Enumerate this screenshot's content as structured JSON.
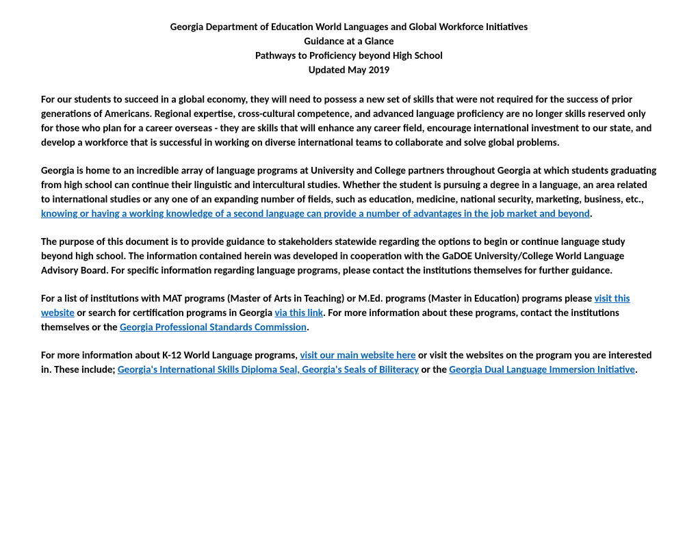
{
  "header": {
    "line1": "Georgia Department of Education World Languages and Global Workforce Initiatives",
    "line2": "Guidance at a Glance",
    "line3": "Pathways to Proficiency beyond High School",
    "line4": "Updated May 2019"
  },
  "paragraphs": {
    "p1": "For our students to succeed in a global economy, they will need to possess a new set of skills that were not required for the success of prior generations of Americans. Regional expertise, cross-cultural competence, and advanced language proficiency are no longer skills reserved only for those who plan for a career overseas - they are skills that will enhance any career field, encourage international investment to our state, and develop a workforce that is successful in working on diverse international teams to collaborate and solve global problems.",
    "p2_part1": "Georgia is home to an incredible array of language programs at University and College partners throughout Georgia at which students graduating from high school can continue their linguistic and intercultural studies.  Whether the student is pursuing a degree in a language, an area related to international studies or any one of an expanding number of fields, such as education, medicine, national security, marketing, business, etc., ",
    "p2_link1": "knowing or having a working knowledge of a second language can provide a number of advantages in the job market and beyond",
    "p2_part2": ".",
    "p3": "The purpose of this document is to provide guidance to stakeholders statewide regarding the options to begin or continue language study beyond high school.  The information contained herein was developed in cooperation with the GaDOE University/College World Language Advisory Board.  For specific information regarding language programs, please contact the institutions themselves for further guidance.",
    "p4_part1": "For a list of institutions with MAT programs (Master of Arts in Teaching) or M.Ed. programs (Master in Education) programs please ",
    "p4_link1": "visit this website",
    "p4_part2": " or search for certification programs in Georgia ",
    "p4_link2": "via this link",
    "p4_part3": ".  For more information about these programs, contact the institutions themselves or the ",
    "p4_link3": "Georgia Professional Standards Commission",
    "p4_part4": ".",
    "p5_part1": "For more information about K-12 World Language programs, ",
    "p5_link1": "visit our main website here",
    "p5_part2": " or visit the websites on the program you are interested in.  These include; ",
    "p5_link2": "Georgia's International Skills Diploma Seal, Georgia's Seals of Biliteracy",
    "p5_part3": " or the ",
    "p5_link3": "Georgia Dual Language Immersion Initiative",
    "p5_part4": "."
  },
  "styles": {
    "text_color": "#000000",
    "link_color": "#0563c1",
    "background_color": "#ffffff",
    "font_family": "Calibri",
    "font_size": 15,
    "font_weight": "bold"
  }
}
